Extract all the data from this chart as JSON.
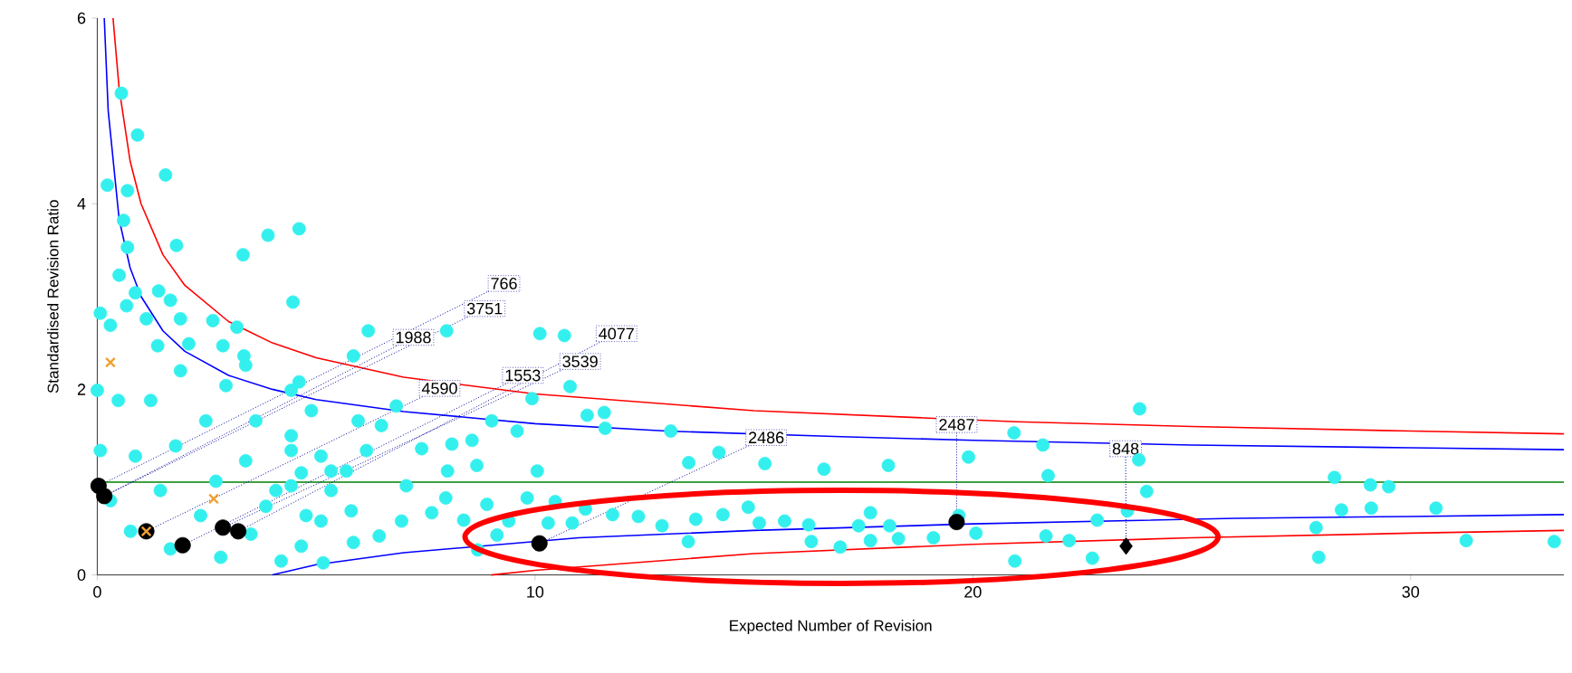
{
  "chart_data": {
    "type": "scatter",
    "xlabel": "Expected Number of Revision",
    "ylabel": "Standardised Revision Ratio",
    "xlim": [
      0,
      33.5
    ],
    "ylim": [
      0,
      6
    ],
    "xticks": [
      0,
      10,
      20,
      30
    ],
    "yticks": [
      0,
      2,
      4,
      6
    ],
    "series": [
      {
        "marker": "circle",
        "color": "#33f0ee",
        "x": [
          0.55,
          0.92,
          0.23,
          0.69,
          0.6,
          1.56,
          0.69,
          1.81,
          3.33,
          3.9,
          4.61,
          4.47,
          0.5,
          0.87,
          1.4,
          1.67,
          0.07,
          0.67,
          1.12,
          1.9,
          2.64,
          3.19,
          2.87,
          3.35,
          2.09,
          1.38,
          4.61,
          5.85,
          6.19,
          7.98,
          10.11,
          10.67,
          10.8,
          9.93,
          11.19,
          11.58,
          11.6,
          13.1,
          13.51,
          14.2,
          15.25,
          16.6,
          18.07,
          20.94,
          21.6,
          19.9,
          23.81,
          23.79,
          23.97,
          21.72,
          28.26,
          28.42,
          29.08,
          29.5,
          29.1,
          30.58,
          31.27,
          33.28,
          27.84,
          27.9,
          22.84,
          23.53,
          22.73,
          21.67,
          20.96,
          22.2,
          20.07,
          19.68,
          19.1,
          18.3,
          17.66,
          18.1,
          17.66,
          17.39,
          16.97,
          16.31,
          16.25,
          15.7,
          15.12,
          14.87,
          14.29,
          13.67,
          13.5,
          12.9,
          12.36,
          11.77,
          11.15,
          10.85,
          10.46,
          10.3,
          10.05,
          9.4,
          9.82,
          8.9,
          9.13,
          8.69,
          8.37,
          7.96,
          7.64,
          8.0,
          8.67,
          8.56,
          9.01,
          9.59,
          8.1,
          7.41,
          7.06,
          6.95,
          6.44,
          5.85,
          5.8,
          5.34,
          5.69,
          6.15,
          6.49,
          6.83,
          5.96,
          4.89,
          4.43,
          5.11,
          4.66,
          4.08,
          4.77,
          0.0,
          0.07,
          0.3,
          0.76,
          1.67,
          2.82,
          4.2,
          5.16,
          0.3,
          0.48,
          0.87,
          1.44,
          2.36,
          3.51,
          4.66,
          1.22,
          1.79,
          2.71,
          3.85,
          5.11,
          1.9,
          2.48,
          3.39,
          4.43,
          2.94,
          3.62,
          4.43,
          5.34,
          3.39,
          4.43
        ],
        "values": [
          5.19,
          4.74,
          4.2,
          4.14,
          3.82,
          4.31,
          3.53,
          3.55,
          3.45,
          3.66,
          3.73,
          2.94,
          3.23,
          3.04,
          3.06,
          2.96,
          2.82,
          2.9,
          2.76,
          2.76,
          2.74,
          2.67,
          2.47,
          2.36,
          2.49,
          2.47,
          2.08,
          2.36,
          2.63,
          2.63,
          2.6,
          2.58,
          2.03,
          1.9,
          1.72,
          1.75,
          1.58,
          1.55,
          1.21,
          1.32,
          1.2,
          1.14,
          1.18,
          1.53,
          1.4,
          1.27,
          1.79,
          1.24,
          0.9,
          1.07,
          1.05,
          0.7,
          0.97,
          0.95,
          0.72,
          0.72,
          0.37,
          0.36,
          0.51,
          0.19,
          0.59,
          0.69,
          0.18,
          0.42,
          0.15,
          0.37,
          0.45,
          0.64,
          0.4,
          0.39,
          0.37,
          0.53,
          0.67,
          0.53,
          0.3,
          0.36,
          0.54,
          0.58,
          0.56,
          0.73,
          0.65,
          0.6,
          0.36,
          0.53,
          0.63,
          0.65,
          0.71,
          0.56,
          0.79,
          0.56,
          1.12,
          0.58,
          0.83,
          0.76,
          0.43,
          0.27,
          0.59,
          0.83,
          0.67,
          1.12,
          1.18,
          1.45,
          1.66,
          1.55,
          1.41,
          1.36,
          0.96,
          0.58,
          0.42,
          0.35,
          0.69,
          0.91,
          1.12,
          1.34,
          1.61,
          1.82,
          1.66,
          1.77,
          1.5,
          1.28,
          1.1,
          0.91,
          0.64,
          1.99,
          1.34,
          0.8,
          0.47,
          0.28,
          0.19,
          0.15,
          0.13,
          2.69,
          1.88,
          1.28,
          0.91,
          0.64,
          0.44,
          0.31,
          1.88,
          1.39,
          1.01,
          0.74,
          0.58,
          2.2,
          1.66,
          1.23,
          0.96,
          2.04,
          1.66,
          1.34,
          1.12,
          2.26,
          1.99
        ]
      },
      {
        "type": "line",
        "marker": "none",
        "line_style": "solid",
        "color": "#ff0000",
        "x": [
          0.36,
          0.5,
          0.75,
          1,
          1.5,
          2,
          3,
          4,
          5,
          7,
          10,
          15,
          19,
          21,
          25,
          30,
          33.5
        ],
        "values": [
          6.0,
          5.24,
          4.46,
          4.0,
          3.45,
          3.12,
          2.73,
          2.5,
          2.34,
          2.13,
          1.95,
          1.77,
          1.69,
          1.65,
          1.6,
          1.55,
          1.52
        ]
      },
      {
        "type": "line",
        "marker": "none",
        "line_style": "solid",
        "color": "#0000ff",
        "x": [
          0.16,
          0.25,
          0.5,
          0.75,
          1,
          1.5,
          2,
          3,
          4,
          5,
          7,
          10,
          13,
          17,
          20,
          25,
          30,
          33.5
        ],
        "values": [
          6.0,
          5.0,
          3.83,
          3.31,
          3.0,
          2.63,
          2.41,
          2.15,
          2.0,
          1.89,
          1.76,
          1.63,
          1.55,
          1.49,
          1.45,
          1.4,
          1.37,
          1.35
        ]
      },
      {
        "type": "line",
        "marker": "none",
        "line_style": "solid",
        "color": "#0000ff",
        "x": [
          4,
          5,
          7,
          11,
          15,
          20,
          26,
          30,
          33.5
        ],
        "values": [
          0,
          0.11,
          0.24,
          0.4,
          0.48,
          0.55,
          0.61,
          0.63,
          0.65
        ]
      },
      {
        "type": "line",
        "marker": "none",
        "line_style": "solid",
        "color": "#ff0000",
        "x": [
          9,
          10,
          15,
          20,
          25,
          30,
          33.5
        ],
        "values": [
          0,
          0.05,
          0.23,
          0.33,
          0.4,
          0.45,
          0.48
        ]
      },
      {
        "marker": "circle",
        "color": "#000000",
        "x": [
          0.03,
          0.16,
          1.12,
          1.95,
          2.87,
          3.22,
          10.1,
          19.63
        ],
        "values": [
          0.96,
          0.85,
          0.47,
          0.32,
          0.51,
          0.47,
          0.34,
          0.57
        ]
      },
      {
        "marker": "diamond",
        "color": "#000000",
        "x": [
          23.5
        ],
        "values": [
          0.31
        ]
      },
      {
        "marker": "cross",
        "color": "#f0a030",
        "x": [
          0.3,
          2.66,
          1.12
        ],
        "values": [
          2.29,
          0.82,
          0.47
        ]
      }
    ],
    "ref_lines": [
      {
        "axis": "y",
        "value": 1,
        "color": "#008000"
      }
    ],
    "annotations": [
      {
        "text": "766",
        "x": 0.03,
        "y": 0.96
      },
      {
        "text": "3751",
        "x": 0.16,
        "y": 0.85
      },
      {
        "text": "1988",
        "x": 0.16,
        "y": 0.85
      },
      {
        "text": "4590",
        "x": 1.12,
        "y": 0.47
      },
      {
        "text": "1553",
        "x": 1.95,
        "y": 0.32
      },
      {
        "text": "4077",
        "x": 3.22,
        "y": 0.47
      },
      {
        "text": "3539",
        "x": 2.87,
        "y": 0.51
      },
      {
        "text": "2486",
        "x": 10.1,
        "y": 0.34
      },
      {
        "text": "2487",
        "x": 19.63,
        "y": 0.57
      },
      {
        "text": "848",
        "x": 23.5,
        "y": 0.31
      }
    ]
  }
}
